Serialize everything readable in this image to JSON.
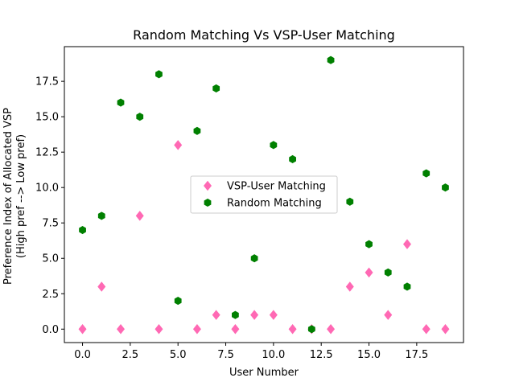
{
  "chart_data": {
    "type": "scatter",
    "title": "Random Matching Vs VSP-User Matching",
    "xlabel": "User Number",
    "ylabel_line1": "Preference Index of Allocated VSP",
    "ylabel_line2": "(High pref --> Low pref)",
    "xlim": [
      -0.95,
      19.95
    ],
    "ylim": [
      -0.95,
      19.95
    ],
    "xticks": [
      0.0,
      2.5,
      5.0,
      7.5,
      10.0,
      12.5,
      15.0,
      17.5
    ],
    "xtick_labels": [
      "0.0",
      "2.5",
      "5.0",
      "7.5",
      "10.0",
      "12.5",
      "15.0",
      "17.5"
    ],
    "yticks": [
      0.0,
      2.5,
      5.0,
      7.5,
      10.0,
      12.5,
      15.0,
      17.5
    ],
    "ytick_labels": [
      "0.0",
      "2.5",
      "5.0",
      "7.5",
      "10.0",
      "12.5",
      "15.0",
      "17.5"
    ],
    "grid": false,
    "legend_position": "center",
    "series": [
      {
        "name": "VSP-User Matching",
        "marker": "diamond",
        "color": "#ff69b4",
        "x": [
          0,
          1,
          2,
          3,
          4,
          5,
          6,
          7,
          8,
          9,
          10,
          11,
          12,
          13,
          14,
          15,
          16,
          17,
          18,
          19
        ],
        "y": [
          0,
          3,
          0,
          8,
          0,
          13,
          0,
          1,
          0,
          1,
          1,
          0,
          0,
          0,
          3,
          4,
          1,
          6,
          0,
          0
        ]
      },
      {
        "name": "Random Matching",
        "marker": "hexagon",
        "color": "#008000",
        "x": [
          0,
          1,
          2,
          3,
          4,
          5,
          6,
          7,
          8,
          9,
          10,
          11,
          12,
          13,
          14,
          15,
          16,
          17,
          18,
          19
        ],
        "y": [
          7,
          8,
          16,
          15,
          18,
          2,
          14,
          17,
          1,
          5,
          13,
          12,
          0,
          19,
          9,
          6,
          4,
          3,
          11,
          10
        ]
      }
    ]
  }
}
